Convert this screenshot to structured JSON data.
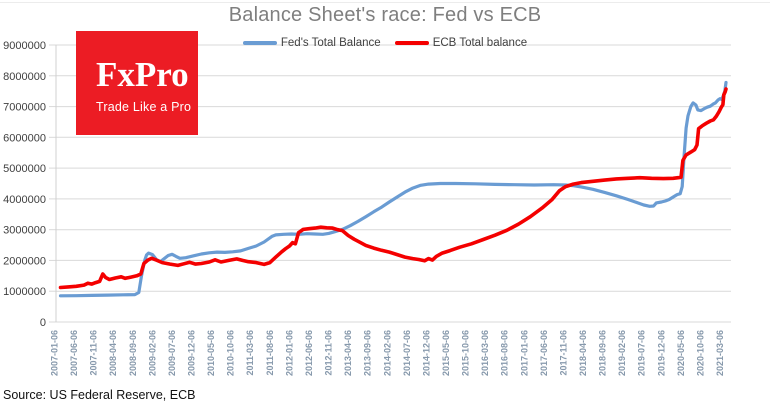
{
  "title": "Balance Sheet's race: Fed vs ECB",
  "legend": {
    "fed": {
      "label": "Fed's Total Balance",
      "color": "#6a9cd3"
    },
    "ecb": {
      "label": "ECB Total balance",
      "color": "#f40000"
    }
  },
  "logo": {
    "wordmark": "FxPro",
    "tagline": "Trade Like a Pro",
    "bg_color": "#ec1c24"
  },
  "source_note": "Source: US Federal Reserve, ECB",
  "colors": {
    "grid": "#d9d9d9",
    "axis": "#d0d0d0",
    "y_tick_label": "#3f3f3f",
    "x_tick_label": "#8799ac",
    "title": "#7f7f7f"
  },
  "chart_data": {
    "type": "line",
    "title": "Balance Sheet's race: Fed vs ECB",
    "xlabel": "",
    "ylabel": "",
    "grid": "horizontal",
    "legend_position": "top-center",
    "ylim": [
      0,
      9000000
    ],
    "y_ticks": [
      0,
      1000000,
      2000000,
      3000000,
      4000000,
      5000000,
      6000000,
      7000000,
      8000000,
      9000000
    ],
    "y_tick_labels": [
      "0",
      "1000000",
      "2000000",
      "3000000",
      "4000000",
      "5000000",
      "6000000",
      "7000000",
      "8000000",
      "9000000"
    ],
    "xlim_months": [
      0,
      170
    ],
    "x_tick_months": [
      0,
      5,
      10,
      15,
      20,
      25,
      30,
      35,
      40,
      45,
      50,
      55,
      60,
      65,
      70,
      75,
      80,
      85,
      90,
      95,
      100,
      105,
      110,
      115,
      120,
      125,
      130,
      135,
      140,
      145,
      150,
      155,
      160,
      165,
      170
    ],
    "x_tick_labels": [
      "2007-01-06",
      "2007-06-06",
      "2007-11-06",
      "2008-04-06",
      "2008-09-06",
      "2009-02-06",
      "2009-07-06",
      "2009-12-06",
      "2010-05-06",
      "2010-10-06",
      "2011-03-06",
      "2011-08-06",
      "2012-01-06",
      "2012-06-06",
      "2012-11-06",
      "2013-04-06",
      "2013-09-06",
      "2014-02-06",
      "2014-07-06",
      "2014-12-06",
      "2015-05-06",
      "2015-10-06",
      "2016-03-06",
      "2016-08-06",
      "2017-01-06",
      "2017-06-06",
      "2017-11-06",
      "2018-04-06",
      "2018-09-06",
      "2019-02-06",
      "2019-07-06",
      "2019-12-06",
      "2020-05-06",
      "2020-10-06",
      "2021-03-06"
    ],
    "series": [
      {
        "name": "Fed's Total Balance",
        "color": "#6a9cd3",
        "width": 3.2,
        "points": [
          [
            0,
            850000
          ],
          [
            4,
            855000
          ],
          [
            8,
            865000
          ],
          [
            12,
            875000
          ],
          [
            16,
            885000
          ],
          [
            19,
            890000
          ],
          [
            20,
            960000
          ],
          [
            20.7,
            1500000
          ],
          [
            21.5,
            2000000
          ],
          [
            22,
            2180000
          ],
          [
            22.5,
            2240000
          ],
          [
            23.5,
            2190000
          ],
          [
            24.5,
            2030000
          ],
          [
            25.5,
            1960000
          ],
          [
            26.5,
            2060000
          ],
          [
            27.5,
            2160000
          ],
          [
            28.5,
            2200000
          ],
          [
            29.5,
            2130000
          ],
          [
            30.5,
            2070000
          ],
          [
            32,
            2090000
          ],
          [
            34,
            2150000
          ],
          [
            36,
            2210000
          ],
          [
            38,
            2250000
          ],
          [
            40,
            2270000
          ],
          [
            42,
            2260000
          ],
          [
            44,
            2280000
          ],
          [
            46,
            2310000
          ],
          [
            48,
            2390000
          ],
          [
            50,
            2470000
          ],
          [
            52,
            2600000
          ],
          [
            54,
            2780000
          ],
          [
            55,
            2830000
          ],
          [
            57,
            2850000
          ],
          [
            59,
            2860000
          ],
          [
            61,
            2850000
          ],
          [
            63,
            2870000
          ],
          [
            65,
            2860000
          ],
          [
            67,
            2850000
          ],
          [
            68.5,
            2880000
          ],
          [
            70,
            2930000
          ],
          [
            72,
            3010000
          ],
          [
            74,
            3130000
          ],
          [
            76,
            3270000
          ],
          [
            78,
            3420000
          ],
          [
            80,
            3580000
          ],
          [
            82,
            3730000
          ],
          [
            84,
            3900000
          ],
          [
            86,
            4060000
          ],
          [
            88,
            4220000
          ],
          [
            90,
            4350000
          ],
          [
            92,
            4440000
          ],
          [
            94,
            4480000
          ],
          [
            97,
            4500000
          ],
          [
            101,
            4500000
          ],
          [
            106,
            4490000
          ],
          [
            111,
            4470000
          ],
          [
            116,
            4460000
          ],
          [
            121,
            4450000
          ],
          [
            126,
            4460000
          ],
          [
            129,
            4450000
          ],
          [
            131,
            4430000
          ],
          [
            133,
            4390000
          ],
          [
            136,
            4310000
          ],
          [
            139,
            4210000
          ],
          [
            142,
            4100000
          ],
          [
            145,
            3980000
          ],
          [
            147,
            3890000
          ],
          [
            149,
            3800000
          ],
          [
            150.5,
            3760000
          ],
          [
            151.5,
            3770000
          ],
          [
            152.2,
            3870000
          ],
          [
            153.5,
            3900000
          ],
          [
            154.5,
            3930000
          ],
          [
            155.5,
            3980000
          ],
          [
            156.5,
            4060000
          ],
          [
            157.5,
            4140000
          ],
          [
            158.3,
            4170000
          ],
          [
            158.8,
            4400000
          ],
          [
            159.3,
            5400000
          ],
          [
            159.8,
            6300000
          ],
          [
            160.3,
            6700000
          ],
          [
            161,
            7000000
          ],
          [
            161.6,
            7120000
          ],
          [
            162.3,
            7050000
          ],
          [
            162.8,
            6890000
          ],
          [
            163.6,
            6870000
          ],
          [
            164.4,
            6930000
          ],
          [
            165.2,
            6980000
          ],
          [
            166,
            7010000
          ],
          [
            166.7,
            7080000
          ],
          [
            167.3,
            7120000
          ],
          [
            168,
            7220000
          ],
          [
            168.5,
            7260000
          ],
          [
            168.9,
            7230000
          ],
          [
            169.3,
            7350000
          ],
          [
            169.7,
            7500000
          ],
          [
            170,
            7780000
          ]
        ]
      },
      {
        "name": "ECB Total balance",
        "color": "#f40000",
        "width": 3.6,
        "points": [
          [
            0,
            1120000
          ],
          [
            2,
            1140000
          ],
          [
            4,
            1160000
          ],
          [
            6,
            1200000
          ],
          [
            7,
            1260000
          ],
          [
            8,
            1230000
          ],
          [
            9,
            1280000
          ],
          [
            10,
            1320000
          ],
          [
            10.8,
            1560000
          ],
          [
            11.5,
            1450000
          ],
          [
            12.5,
            1380000
          ],
          [
            14,
            1430000
          ],
          [
            15.5,
            1470000
          ],
          [
            16.5,
            1420000
          ],
          [
            18,
            1460000
          ],
          [
            19.5,
            1500000
          ],
          [
            20.5,
            1560000
          ],
          [
            21.3,
            1900000
          ],
          [
            22.3,
            2010000
          ],
          [
            23.3,
            2070000
          ],
          [
            24.5,
            2010000
          ],
          [
            26,
            1930000
          ],
          [
            28,
            1880000
          ],
          [
            30,
            1840000
          ],
          [
            31.5,
            1890000
          ],
          [
            33,
            1940000
          ],
          [
            34.5,
            1880000
          ],
          [
            36,
            1900000
          ],
          [
            38,
            1950000
          ],
          [
            39.5,
            2020000
          ],
          [
            41,
            1950000
          ],
          [
            43,
            2000000
          ],
          [
            45,
            2050000
          ],
          [
            46.5,
            2000000
          ],
          [
            48,
            1960000
          ],
          [
            50,
            1930000
          ],
          [
            52,
            1870000
          ],
          [
            53.5,
            1930000
          ],
          [
            55,
            2110000
          ],
          [
            56.5,
            2280000
          ],
          [
            57.5,
            2380000
          ],
          [
            58.5,
            2470000
          ],
          [
            59.3,
            2580000
          ],
          [
            60,
            2540000
          ],
          [
            60.8,
            2900000
          ],
          [
            62,
            3010000
          ],
          [
            63.5,
            3030000
          ],
          [
            65,
            3050000
          ],
          [
            66.5,
            3080000
          ],
          [
            68,
            3060000
          ],
          [
            69.5,
            3050000
          ],
          [
            70.8,
            3000000
          ],
          [
            72,
            2970000
          ],
          [
            73.5,
            2810000
          ],
          [
            75,
            2690000
          ],
          [
            76.5,
            2590000
          ],
          [
            78,
            2490000
          ],
          [
            80,
            2400000
          ],
          [
            82,
            2330000
          ],
          [
            84,
            2270000
          ],
          [
            86,
            2190000
          ],
          [
            88,
            2110000
          ],
          [
            90,
            2060000
          ],
          [
            91.5,
            2030000
          ],
          [
            93,
            1990000
          ],
          [
            94,
            2060000
          ],
          [
            95,
            2010000
          ],
          [
            96,
            2130000
          ],
          [
            97.5,
            2240000
          ],
          [
            99.5,
            2320000
          ],
          [
            102,
            2430000
          ],
          [
            105,
            2540000
          ],
          [
            108,
            2680000
          ],
          [
            111,
            2820000
          ],
          [
            114,
            2980000
          ],
          [
            117,
            3180000
          ],
          [
            120,
            3420000
          ],
          [
            123,
            3700000
          ],
          [
            125.5,
            3970000
          ],
          [
            127.5,
            4270000
          ],
          [
            129,
            4400000
          ],
          [
            131,
            4480000
          ],
          [
            133,
            4530000
          ],
          [
            136,
            4570000
          ],
          [
            139,
            4610000
          ],
          [
            142,
            4650000
          ],
          [
            145,
            4670000
          ],
          [
            148,
            4690000
          ],
          [
            151,
            4670000
          ],
          [
            154,
            4660000
          ],
          [
            156.5,
            4670000
          ],
          [
            158.5,
            4700000
          ],
          [
            159,
            5250000
          ],
          [
            159.8,
            5430000
          ],
          [
            161,
            5520000
          ],
          [
            162,
            5600000
          ],
          [
            162.6,
            5750000
          ],
          [
            163,
            6280000
          ],
          [
            164,
            6380000
          ],
          [
            165,
            6460000
          ],
          [
            166,
            6530000
          ],
          [
            166.8,
            6570000
          ],
          [
            167.5,
            6680000
          ],
          [
            168.2,
            6830000
          ],
          [
            168.8,
            6980000
          ],
          [
            169.2,
            7060000
          ],
          [
            169.45,
            7380000
          ],
          [
            169.8,
            7480000
          ],
          [
            170,
            7570000
          ]
        ]
      }
    ]
  }
}
